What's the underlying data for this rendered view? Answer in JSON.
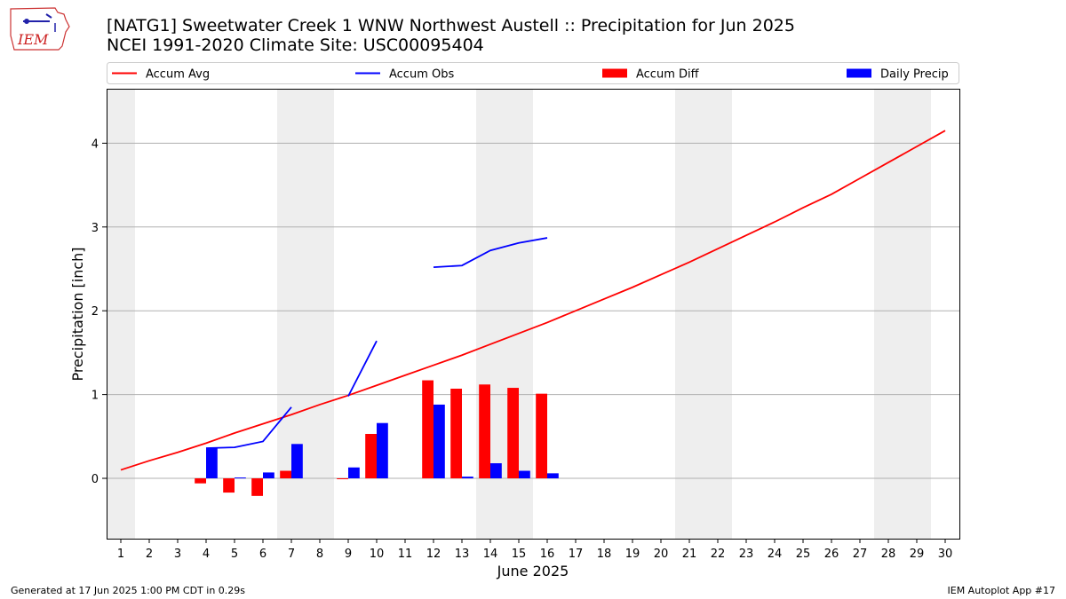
{
  "header": {
    "title_line1": "[NATG1] Sweetwater Creek 1 WNW Northwest Austell :: Precipitation for Jun 2025",
    "title_line2": "NCEI 1991-2020 Climate Site: USC00095404"
  },
  "logo": {
    "text": "IEM",
    "icon": "iem-iowa-logo-icon"
  },
  "footer": {
    "left": "Generated at 17 Jun 2025 1:00 PM CDT in 0.29s",
    "right": "IEM Autoplot App #17"
  },
  "colors": {
    "avg": "#ff0000",
    "obs": "#0000ff",
    "diff": "#ff0000",
    "daily": "#0000ff",
    "weekend": "#eeeeee",
    "grid": "#b0b0b0"
  },
  "chart_data": {
    "type": "bar",
    "xlabel": "June 2025",
    "ylabel": "Precipitation [inch]",
    "xlim": [
      0.5,
      30.5
    ],
    "ylim": [
      -0.72,
      4.65
    ],
    "y_ticks": [
      0,
      1,
      2,
      3,
      4
    ],
    "x_ticks": [
      1,
      2,
      3,
      4,
      5,
      6,
      7,
      8,
      9,
      10,
      11,
      12,
      13,
      14,
      15,
      16,
      17,
      18,
      19,
      20,
      21,
      22,
      23,
      24,
      25,
      26,
      27,
      28,
      29,
      30
    ],
    "grid": "horizontal",
    "legend": [
      "Accum Avg",
      "Accum Obs",
      "Accum Diff",
      "Daily Precip"
    ],
    "legend_placement": "top",
    "weekend_bands": [
      [
        0.5,
        1.5
      ],
      [
        6.5,
        8.5
      ],
      [
        13.5,
        15.5
      ],
      [
        20.5,
        22.5
      ],
      [
        27.5,
        29.5
      ]
    ],
    "accum_avg": {
      "name": "Accum Avg",
      "x": [
        1,
        2,
        3,
        4,
        5,
        6,
        7,
        8,
        9,
        10,
        11,
        12,
        13,
        14,
        15,
        16,
        17,
        18,
        19,
        20,
        21,
        22,
        23,
        24,
        25,
        26,
        27,
        28,
        29,
        30
      ],
      "y": [
        0.1,
        0.21,
        0.31,
        0.42,
        0.54,
        0.65,
        0.76,
        0.88,
        0.99,
        1.11,
        1.23,
        1.35,
        1.47,
        1.6,
        1.73,
        1.86,
        2.0,
        2.14,
        2.28,
        2.43,
        2.58,
        2.74,
        2.9,
        3.06,
        3.23,
        3.39,
        3.58,
        3.77,
        3.96,
        4.15
      ]
    },
    "accum_obs": {
      "name": "Accum Obs",
      "segments": [
        {
          "x": [
            4,
            5,
            6,
            7
          ],
          "y": [
            0.36,
            0.37,
            0.44,
            0.85
          ]
        },
        {
          "x": [
            9,
            10
          ],
          "y": [
            0.98,
            1.64
          ]
        },
        {
          "x": [
            12,
            13,
            14,
            15,
            16
          ],
          "y": [
            2.52,
            2.54,
            2.72,
            2.81,
            2.87
          ]
        }
      ]
    },
    "accum_diff": {
      "name": "Accum Diff",
      "x": [
        4,
        5,
        6,
        7,
        9,
        10,
        12,
        13,
        14,
        15,
        16
      ],
      "y": [
        -0.06,
        -0.17,
        -0.21,
        0.09,
        -0.01,
        0.53,
        1.17,
        1.07,
        1.12,
        1.08,
        1.01
      ]
    },
    "daily_precip": {
      "name": "Daily Precip",
      "x": [
        4,
        5,
        6,
        7,
        9,
        10,
        12,
        13,
        14,
        15,
        16
      ],
      "y": [
        0.36,
        0.01,
        0.07,
        0.41,
        0.13,
        0.66,
        0.88,
        0.02,
        0.18,
        0.09,
        0.06
      ]
    }
  }
}
